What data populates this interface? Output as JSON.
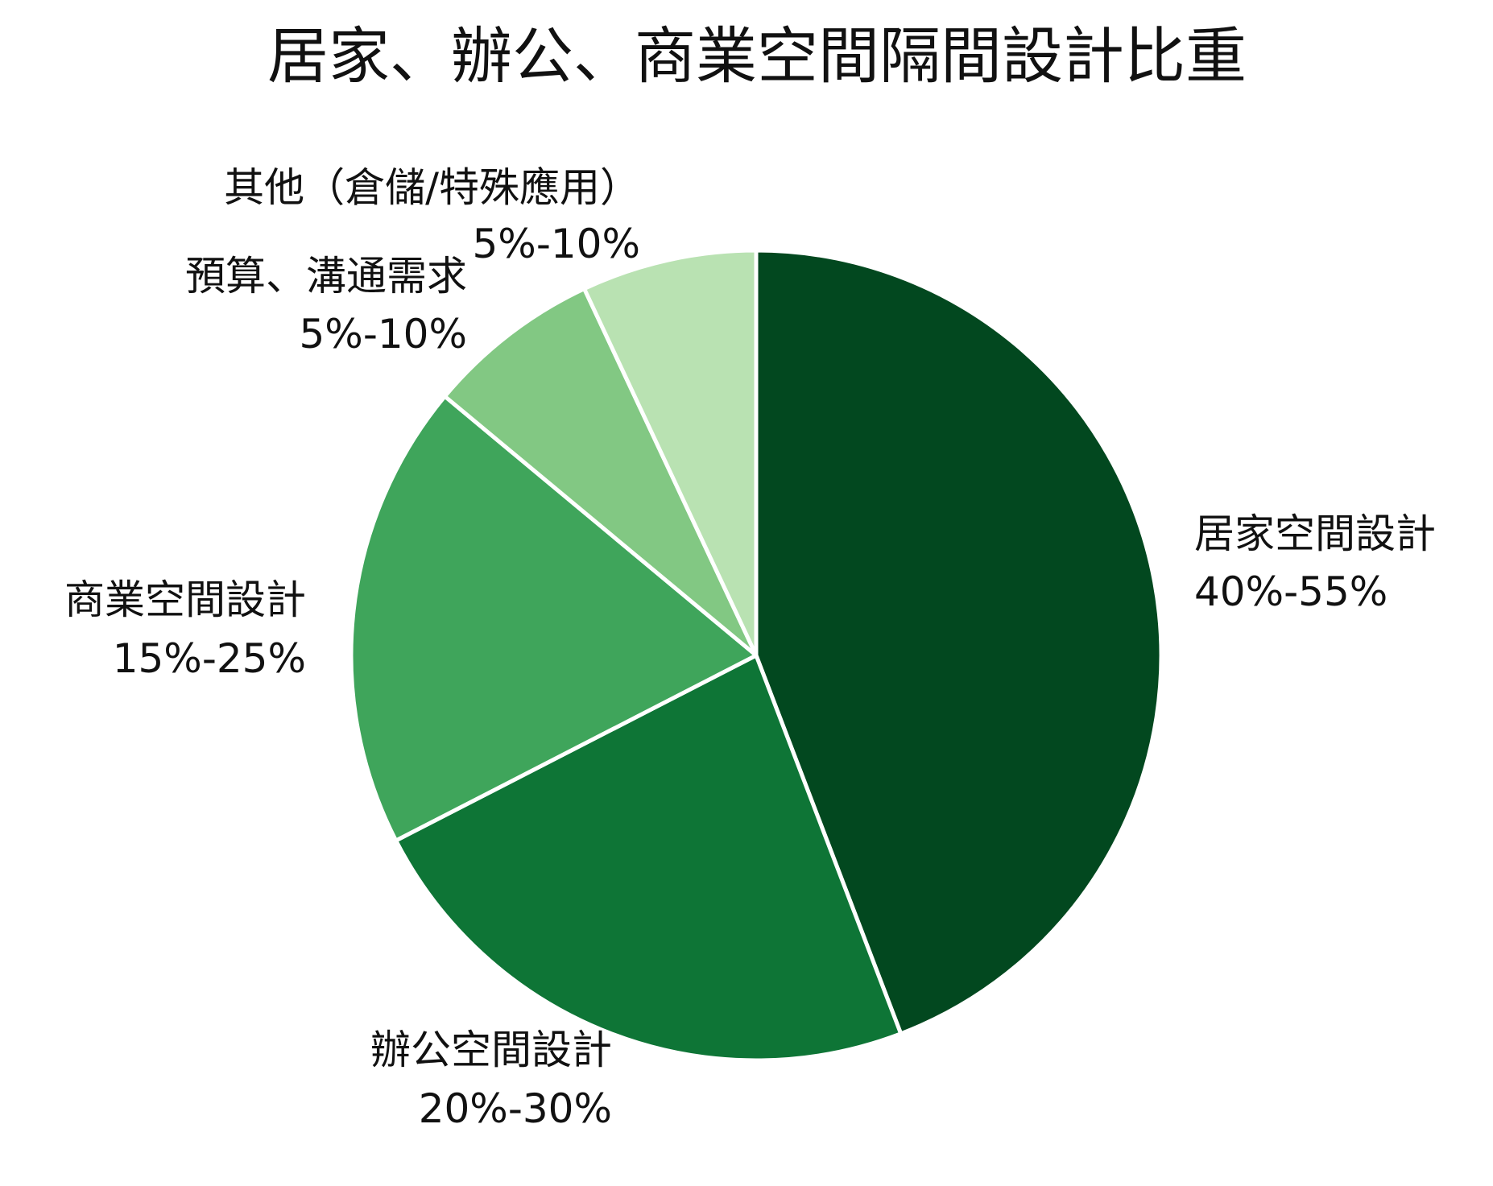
{
  "chart_data": {
    "type": "pie",
    "title": "居家、辦公、商業空間隔間設計比重",
    "slices": [
      {
        "label": "居家空間設計",
        "range": "40%-55%",
        "value": 47.5,
        "color": "#02481f"
      },
      {
        "label": "辦公空間設計",
        "range": "20%-30%",
        "value": 25,
        "color": "#0e7536"
      },
      {
        "label": "商業空間設計",
        "range": "15%-25%",
        "value": 20,
        "color": "#3fa55b"
      },
      {
        "label": "預算、溝通需求",
        "range": "5%-10%",
        "value": 7.5,
        "color": "#82c883"
      },
      {
        "label": "其他（倉儲/特殊應用）",
        "range": "5%-10%",
        "value": 7.5,
        "color": "#b9e2b2"
      }
    ],
    "start_angle": "12 o'clock",
    "direction": "clockwise",
    "slice_border_color": "#ffffff",
    "legend": "none"
  }
}
